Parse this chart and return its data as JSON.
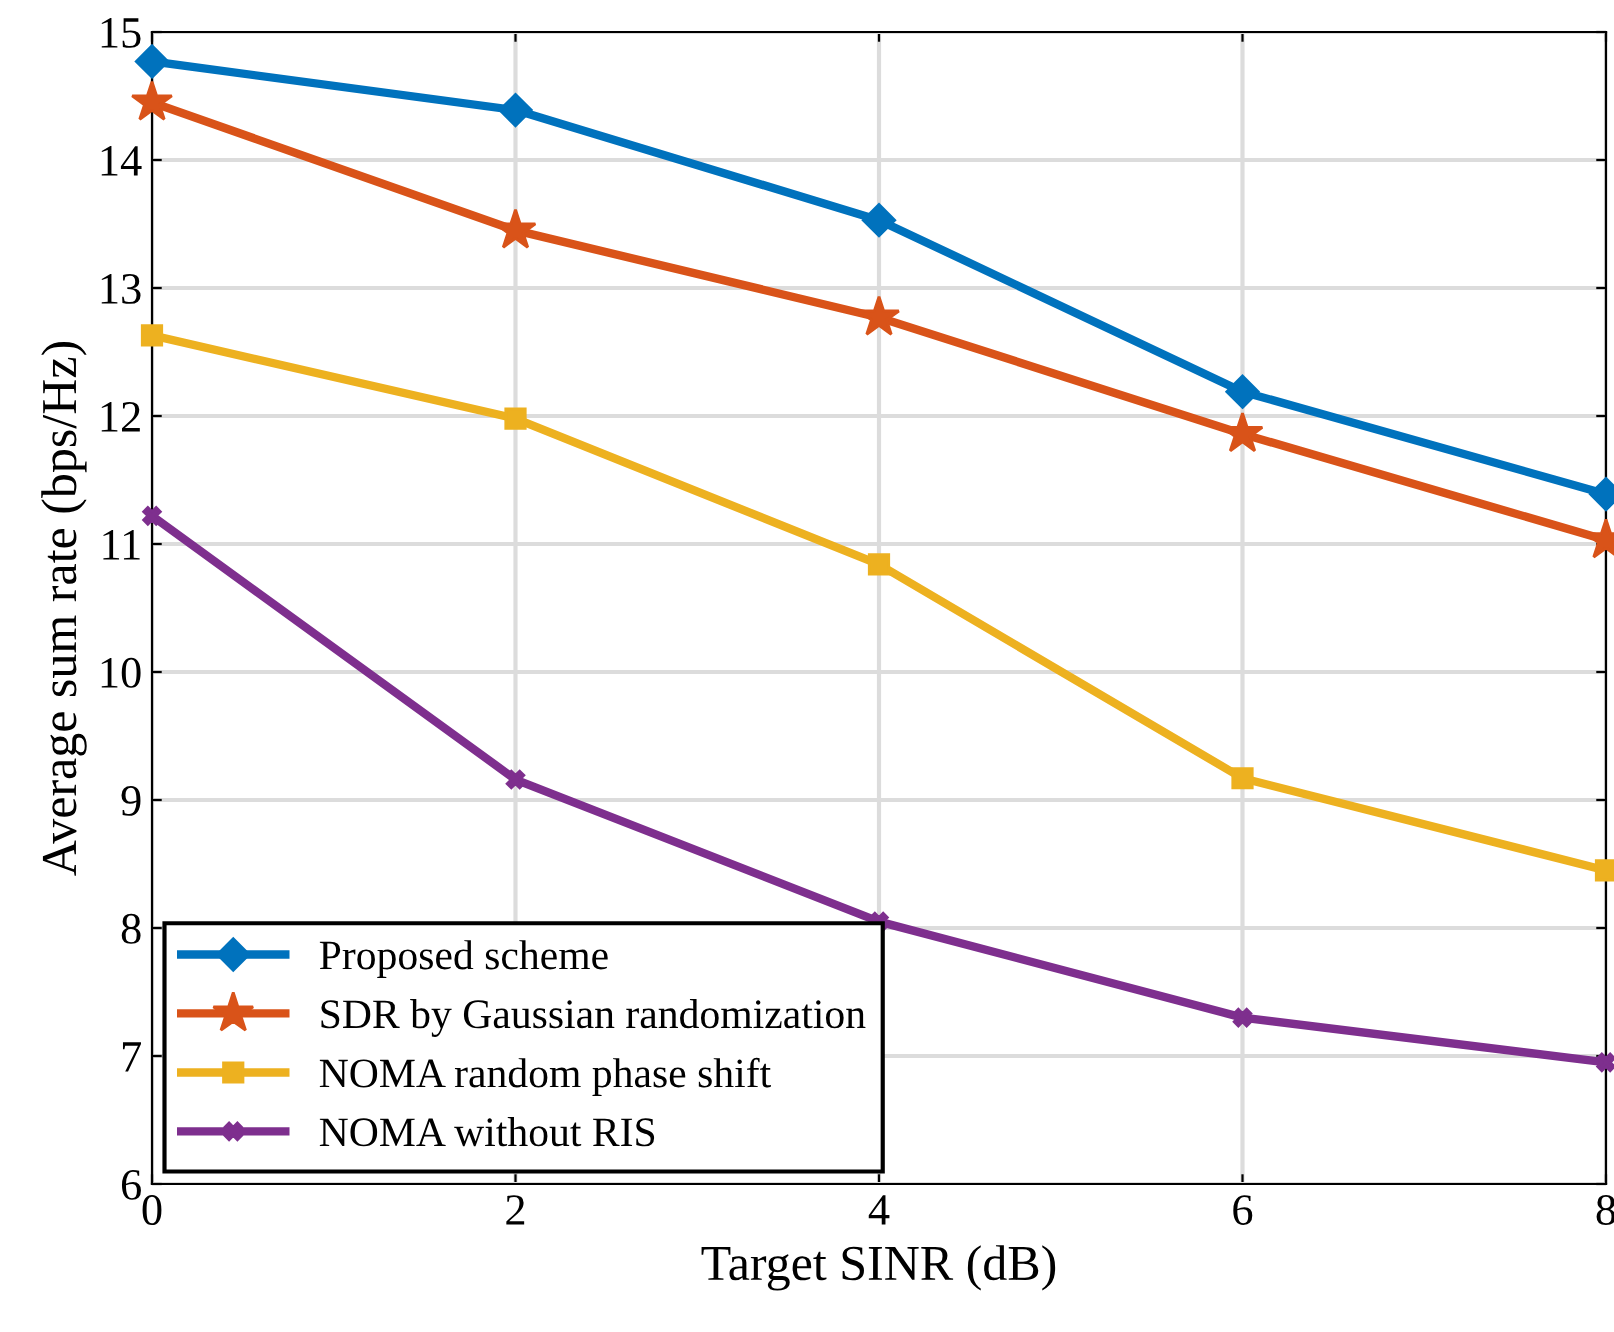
{
  "chart_data": {
    "type": "line",
    "xlabel": "Target SINR (dB)",
    "ylabel": "Average sum rate (bps/Hz)",
    "x": [
      0,
      2,
      4,
      6,
      8
    ],
    "xlim": [
      0,
      8
    ],
    "xticks": [
      0,
      2,
      4,
      6,
      8
    ],
    "ylim": [
      6,
      15
    ],
    "yticks": [
      6,
      7,
      8,
      9,
      10,
      11,
      12,
      13,
      14,
      15
    ],
    "grid": true,
    "legend": "bottom left",
    "line_style": "solid",
    "series": [
      {
        "name": "Proposed scheme",
        "color": "#0072bd",
        "marker": "diamond",
        "values": [
          14.77,
          14.39,
          13.53,
          12.19,
          11.39
        ]
      },
      {
        "name": "SDR by Gaussian randomization",
        "color": "#d95319",
        "marker": "star",
        "values": [
          14.45,
          13.45,
          12.77,
          11.86,
          11.03
        ]
      },
      {
        "name": "NOMA random phase shift",
        "color": "#edb120",
        "marker": "square",
        "values": [
          12.63,
          11.98,
          10.84,
          9.17,
          8.45
        ]
      },
      {
        "name": "NOMA without RIS",
        "color": "#7e2f8e",
        "marker": "cross",
        "values": [
          11.22,
          9.16,
          8.05,
          7.3,
          6.95
        ]
      }
    ]
  }
}
